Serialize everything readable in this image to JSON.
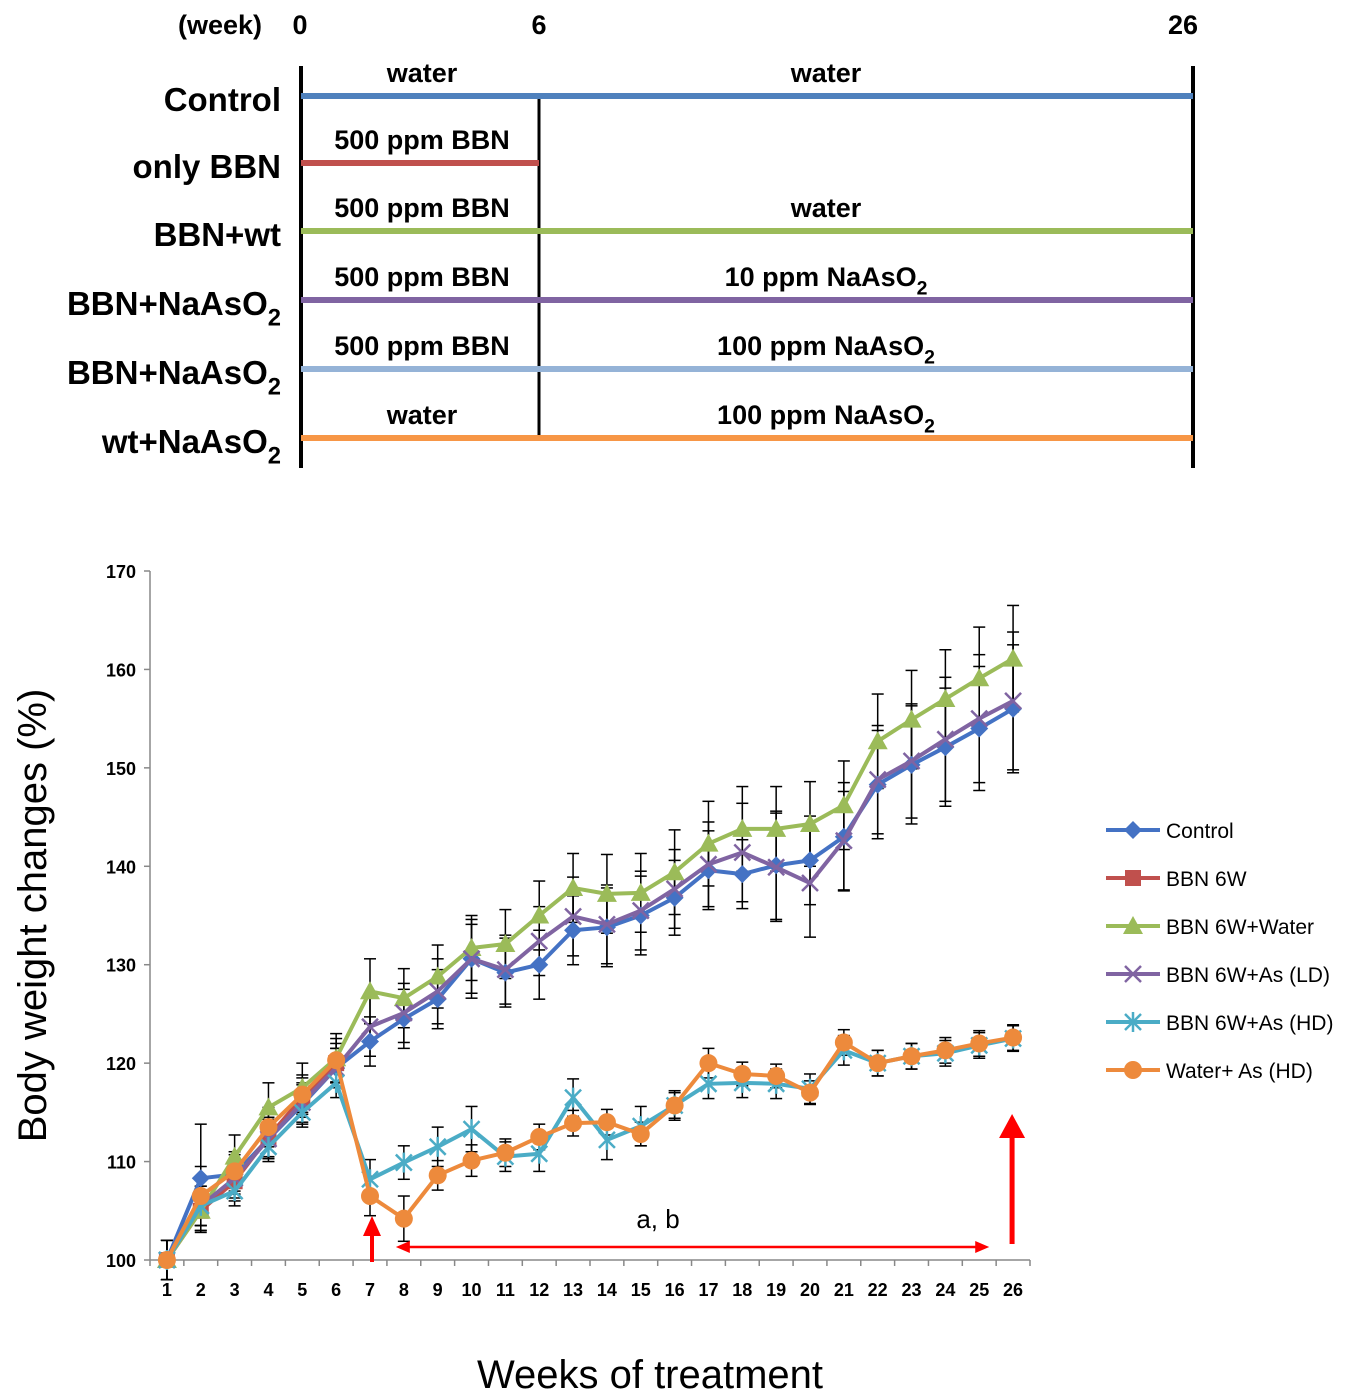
{
  "schedule": {
    "week_label": "(week)",
    "week_ticks": [
      "0",
      "6",
      "26"
    ],
    "rows": [
      {
        "label": "Control",
        "sub": "",
        "color": "#4F81BD",
        "ends_at_week6": false,
        "seg1": "water",
        "seg2": "water",
        "seg2_sub": ""
      },
      {
        "label": "only BBN",
        "sub": "",
        "color": "#C0504D",
        "ends_at_week6": true,
        "seg1": "500 ppm BBN",
        "seg2": "",
        "seg2_sub": ""
      },
      {
        "label": "BBN+wt",
        "sub": "",
        "color": "#9BBB59",
        "ends_at_week6": false,
        "seg1": "500 ppm BBN",
        "seg2": "water",
        "seg2_sub": ""
      },
      {
        "label": "BBN+NaAsO",
        "sub": "2",
        "color": "#8064A2",
        "ends_at_week6": false,
        "seg1": "500 ppm BBN",
        "seg2": "10 ppm NaAsO",
        "seg2_sub": "2"
      },
      {
        "label": "BBN+NaAsO",
        "sub": "2",
        "color": "#95B3D7",
        "ends_at_week6": false,
        "seg1": "500 ppm BBN",
        "seg2": "100 ppm NaAsO",
        "seg2_sub": "2"
      },
      {
        "label": "wt+NaAsO",
        "sub": "2",
        "color": "#F79646",
        "ends_at_week6": false,
        "seg1": "water",
        "seg2": "100 ppm NaAsO",
        "seg2_sub": "2"
      }
    ]
  },
  "chart_data": {
    "type": "line",
    "title": "",
    "xlabel": "Weeks of treatment",
    "ylabel": "Body weight changes (%)",
    "ylim": [
      100,
      170
    ],
    "yticks": [
      100,
      110,
      120,
      130,
      140,
      150,
      160,
      170
    ],
    "x": [
      1,
      2,
      3,
      4,
      5,
      6,
      7,
      8,
      9,
      10,
      11,
      12,
      13,
      14,
      15,
      16,
      17,
      18,
      19,
      20,
      21,
      22,
      23,
      24,
      25,
      26
    ],
    "grid": false,
    "legend_position": "right",
    "annotation_text": "a, b",
    "series": [
      {
        "name": "Control",
        "color": "#4472C4",
        "marker": "diamond",
        "values": [
          100,
          108.3,
          108.7,
          112.3,
          115.8,
          119.5,
          122.2,
          124.5,
          126.5,
          130.6,
          129.2,
          130,
          133.5,
          133.8,
          135,
          136.8,
          139.6,
          139.2,
          140.1,
          140.6,
          143,
          148.3,
          150.3,
          152.1,
          154,
          156
        ],
        "errors": [
          2,
          5.5,
          2,
          2,
          2,
          2,
          2.5,
          3,
          3,
          4,
          3.5,
          3.5,
          3.5,
          4,
          4,
          3.8,
          4,
          3.5,
          5.5,
          4.5,
          5.5,
          5.5,
          6,
          6,
          6.3,
          6.5
        ]
      },
      {
        "name": "BBN 6W",
        "color": "#C0504D",
        "marker": "square",
        "values": [
          100,
          105,
          108,
          112.5,
          116.5,
          120,
          null,
          null,
          null,
          null,
          null,
          null,
          null,
          null,
          null,
          null,
          null,
          null,
          null,
          null,
          null,
          null,
          null,
          null,
          null,
          null
        ],
        "errors": [
          2,
          2,
          2,
          2,
          2,
          2,
          null,
          null,
          null,
          null,
          null,
          null,
          null,
          null,
          null,
          null,
          null,
          null,
          null,
          null,
          null,
          null,
          null,
          null,
          null,
          null
        ]
      },
      {
        "name": "BBN 6W+Water",
        "color": "#9BBB59",
        "marker": "triangle",
        "values": [
          100,
          105,
          110.5,
          115.5,
          117.5,
          120.5,
          127.3,
          126.6,
          128.8,
          131.7,
          132.1,
          135,
          137.8,
          137.2,
          137.3,
          139.4,
          142.3,
          143.8,
          143.8,
          144.3,
          146.2,
          152.7,
          154.9,
          157,
          159.1,
          161.1
        ],
        "errors": [
          2,
          2,
          2.2,
          2.5,
          2.5,
          2.5,
          3.3,
          3,
          3.2,
          3.3,
          3.5,
          3.5,
          3.5,
          4,
          4,
          4.3,
          4.3,
          4.3,
          4.3,
          4.3,
          4.5,
          4.8,
          5,
          5,
          5.2,
          5.4
        ]
      },
      {
        "name": "BBN 6W+As (LD)",
        "color": "#8064A2",
        "marker": "x",
        "values": [
          100,
          105.5,
          108.3,
          112.3,
          116,
          119.5,
          123.7,
          125.1,
          127.3,
          130.6,
          129.5,
          132.4,
          134.9,
          134.1,
          135.5,
          137.7,
          140.2,
          141.4,
          139.9,
          138.3,
          142.6,
          148.8,
          150.7,
          152.9,
          155,
          156.8
        ],
        "errors": [
          2,
          2,
          2,
          2,
          2,
          2,
          3,
          3,
          3.3,
          3.5,
          3.5,
          3.5,
          4,
          4,
          4,
          4,
          4.3,
          5,
          5.5,
          5.5,
          5,
          5.5,
          5.8,
          6.3,
          6.5,
          7
        ]
      },
      {
        "name": "BBN 6W+As (HD)",
        "color": "#4BACC6",
        "marker": "asterisk",
        "values": [
          100,
          105.5,
          107,
          111.5,
          115,
          118,
          108.2,
          109.9,
          111.5,
          113.3,
          110.5,
          110.8,
          116.5,
          112.2,
          113.6,
          115.7,
          117.9,
          118,
          117.9,
          117.4,
          121.3,
          120,
          120.7,
          121,
          121.8,
          122.5
        ],
        "errors": [
          2,
          2,
          1.5,
          1.5,
          1.5,
          1.5,
          2,
          1.7,
          2,
          2.3,
          1.5,
          1.8,
          1.9,
          2,
          2,
          1.5,
          1.5,
          1.5,
          1.5,
          1.5,
          1.5,
          1.3,
          1.3,
          1.3,
          1.3,
          1.3
        ]
      },
      {
        "name": "Water+ As (HD)",
        "color": "#ED8A3C",
        "marker": "circle",
        "values": [
          100,
          106.5,
          109,
          113.5,
          116.8,
          120.3,
          106.5,
          104.2,
          108.6,
          110.1,
          110.9,
          112.5,
          113.9,
          114,
          112.8,
          115.7,
          120,
          118.9,
          118.7,
          117,
          122.1,
          120,
          120.7,
          121.3,
          122,
          122.6
        ],
        "errors": [
          2,
          3,
          2,
          2,
          2,
          2.2,
          2,
          2.3,
          1.5,
          1.6,
          1.4,
          1.3,
          1.3,
          1.3,
          1.2,
          1.3,
          1.5,
          1.2,
          1.2,
          1.2,
          1.3,
          1.3,
          1.3,
          1.3,
          1.3,
          1.3
        ]
      }
    ]
  }
}
